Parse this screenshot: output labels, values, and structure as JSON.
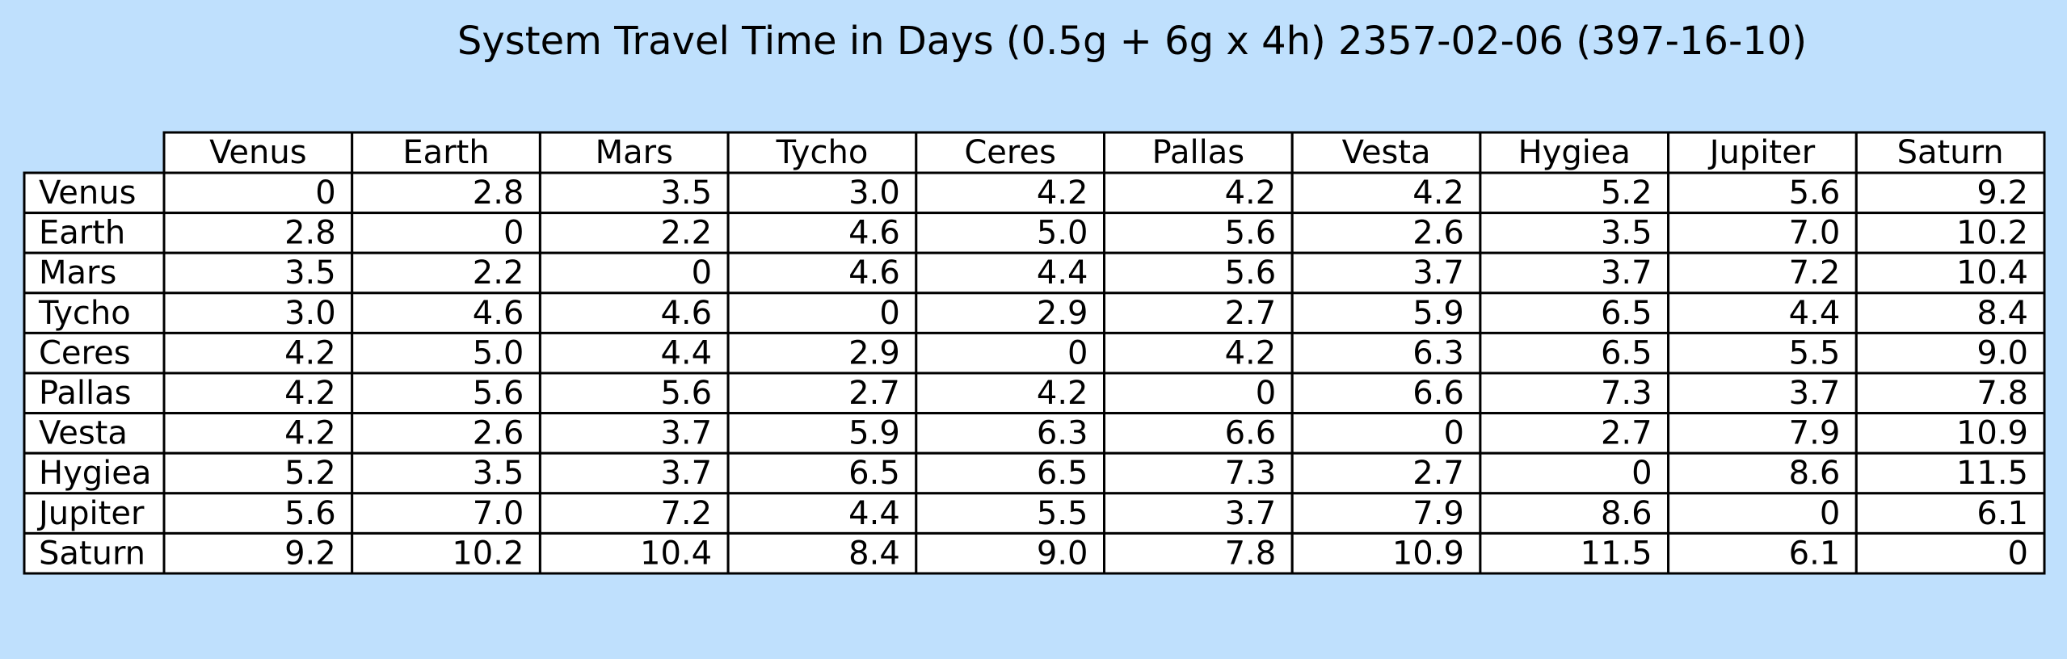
{
  "chart_data": {
    "type": "table",
    "title": "System Travel Time in Days (0.5g + 6g x 4h) 2357-02-06 (397-16-10)",
    "columns": [
      "Venus",
      "Earth",
      "Mars",
      "Tycho",
      "Ceres",
      "Pallas",
      "Vesta",
      "Hygiea",
      "Jupiter",
      "Saturn"
    ],
    "rows": [
      {
        "label": "Venus",
        "values": [
          "0",
          "2.8",
          "3.5",
          "3.0",
          "4.2",
          "4.2",
          "4.2",
          "5.2",
          "5.6",
          "9.2"
        ]
      },
      {
        "label": "Earth",
        "values": [
          "2.8",
          "0",
          "2.2",
          "4.6",
          "5.0",
          "5.6",
          "2.6",
          "3.5",
          "7.0",
          "10.2"
        ]
      },
      {
        "label": "Mars",
        "values": [
          "3.5",
          "2.2",
          "0",
          "4.6",
          "4.4",
          "5.6",
          "3.7",
          "3.7",
          "7.2",
          "10.4"
        ]
      },
      {
        "label": "Tycho",
        "values": [
          "3.0",
          "4.6",
          "4.6",
          "0",
          "2.9",
          "2.7",
          "5.9",
          "6.5",
          "4.4",
          "8.4"
        ]
      },
      {
        "label": "Ceres",
        "values": [
          "4.2",
          "5.0",
          "4.4",
          "2.9",
          "0",
          "4.2",
          "6.3",
          "6.5",
          "5.5",
          "9.0"
        ]
      },
      {
        "label": "Pallas",
        "values": [
          "4.2",
          "5.6",
          "5.6",
          "2.7",
          "4.2",
          "0",
          "6.6",
          "7.3",
          "3.7",
          "7.8"
        ]
      },
      {
        "label": "Vesta",
        "values": [
          "4.2",
          "2.6",
          "3.7",
          "5.9",
          "6.3",
          "6.6",
          "0",
          "2.7",
          "7.9",
          "10.9"
        ]
      },
      {
        "label": "Hygiea",
        "values": [
          "5.2",
          "3.5",
          "3.7",
          "6.5",
          "6.5",
          "7.3",
          "2.7",
          "0",
          "8.6",
          "11.5"
        ]
      },
      {
        "label": "Jupiter",
        "values": [
          "5.6",
          "7.0",
          "7.2",
          "4.4",
          "5.5",
          "3.7",
          "7.9",
          "8.6",
          "0",
          "6.1"
        ]
      },
      {
        "label": "Saturn",
        "values": [
          "9.2",
          "10.2",
          "10.4",
          "8.4",
          "9.0",
          "7.8",
          "10.9",
          "11.5",
          "6.1",
          "0"
        ]
      }
    ]
  },
  "colors": {
    "background": "#bfe0fd",
    "cell_background": "#ffffff",
    "grid_line": "#000000"
  }
}
